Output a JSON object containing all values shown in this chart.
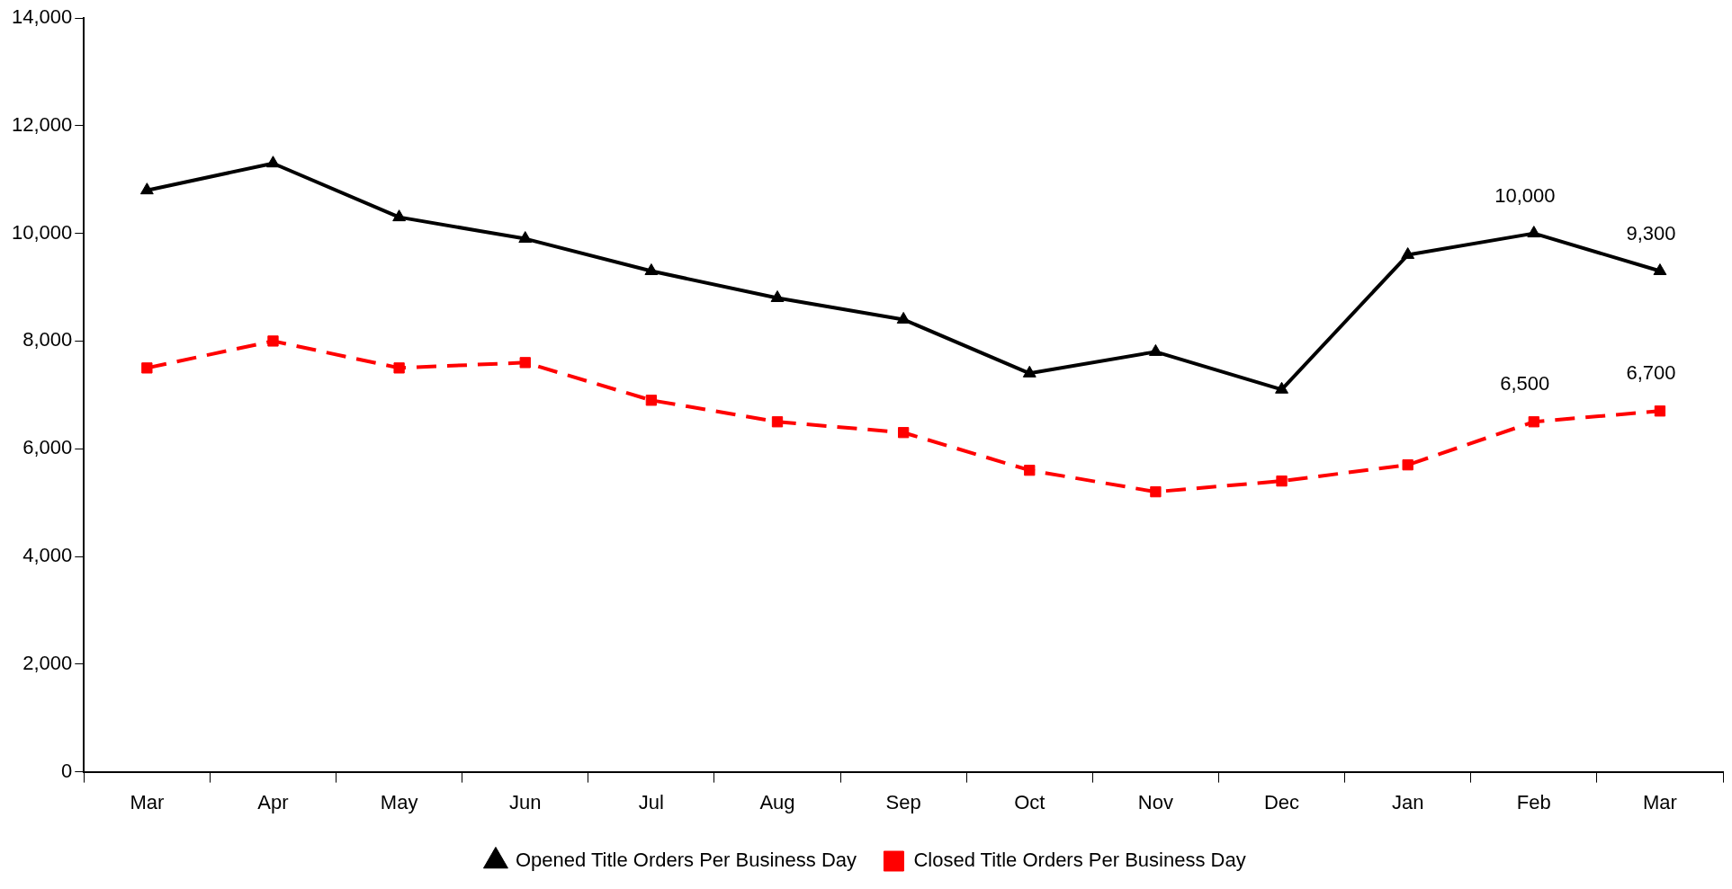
{
  "chart_data": {
    "type": "line",
    "categories": [
      "Mar",
      "Apr",
      "May",
      "Jun",
      "Jul",
      "Aug",
      "Sep",
      "Oct",
      "Nov",
      "Dec",
      "Jan",
      "Feb",
      "Mar"
    ],
    "series": [
      {
        "name": "Opened Title Orders Per Business Day",
        "color": "#000000",
        "marker": "triangle",
        "line_style": "solid",
        "values": [
          10800,
          11300,
          10300,
          9900,
          9300,
          8800,
          8400,
          7400,
          7800,
          7100,
          9600,
          10000,
          9300
        ],
        "value_labels": [
          null,
          null,
          null,
          null,
          null,
          null,
          null,
          null,
          null,
          null,
          null,
          "10,000",
          "9,300"
        ]
      },
      {
        "name": "Closed Title Orders Per Business Day",
        "color": "#ff0000",
        "marker": "square",
        "line_style": "dashed",
        "values": [
          7500,
          8000,
          7500,
          7600,
          6900,
          6500,
          6300,
          5600,
          5200,
          5400,
          5700,
          6500,
          6700
        ],
        "value_labels": [
          null,
          null,
          null,
          null,
          null,
          null,
          null,
          null,
          null,
          null,
          null,
          "6,500",
          "6,700"
        ]
      }
    ],
    "ylim": [
      0,
      14000
    ],
    "yticks": [
      0,
      {
        "value": 2000,
        "label": "2,000"
      },
      {
        "value": 4000,
        "label": "4,000"
      },
      {
        "value": 6000,
        "label": "6,000"
      },
      {
        "value": 8000,
        "label": "8,000"
      },
      {
        "value": 10000,
        "label": "10,000"
      },
      {
        "value": 12000,
        "label": "12,000"
      },
      {
        "value": 14000,
        "label": "14,000"
      }
    ],
    "grid": false,
    "legend": "bottom"
  }
}
